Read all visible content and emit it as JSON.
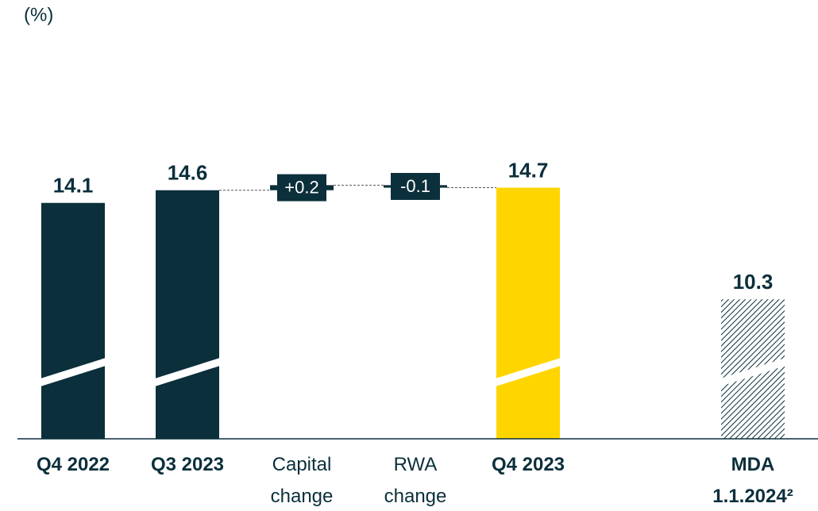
{
  "chart_data": {
    "type": "waterfall",
    "unit_label": "(%)",
    "categories": [
      [
        "Q4 2022"
      ],
      [
        "Q3 2023"
      ],
      [
        "Capital",
        "change"
      ],
      [
        "RWA",
        "change"
      ],
      [
        "Q4 2023"
      ],
      [
        "MDA",
        "1.1.2024²"
      ]
    ],
    "values": [
      14.1,
      14.6,
      0.2,
      -0.1,
      14.7,
      10.3
    ],
    "value_labels": [
      "14.1",
      "14.6",
      "+0.2",
      "-0.1",
      "14.7",
      "10.3"
    ],
    "totals": [
      true,
      true,
      false,
      false,
      true,
      true
    ],
    "colors": [
      "#0b2f3b",
      "#0b2f3b",
      "#0b2f3b",
      "#0b2f3b",
      "#ffd500",
      "hatch"
    ],
    "ylim": [
      4.8,
      22.1
    ]
  }
}
